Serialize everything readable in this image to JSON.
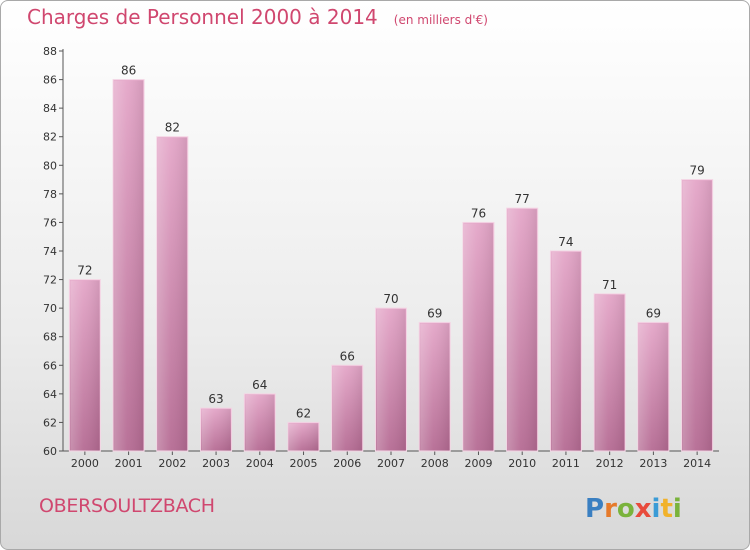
{
  "chart_data": {
    "type": "bar",
    "title": "Charges de Personnel 2000 à 2014",
    "subtitle": "(en milliers d'€)",
    "categories": [
      "2000",
      "2001",
      "2002",
      "2003",
      "2004",
      "2005",
      "2006",
      "2007",
      "2008",
      "2009",
      "2010",
      "2011",
      "2012",
      "2013",
      "2014"
    ],
    "values": [
      72,
      86,
      82,
      63,
      64,
      62,
      66,
      70,
      69,
      76,
      77,
      74,
      71,
      69,
      79
    ],
    "ylim": [
      60,
      88
    ],
    "yticks": [
      60,
      62,
      64,
      66,
      68,
      70,
      72,
      74,
      76,
      78,
      80,
      82,
      84,
      86,
      88
    ],
    "grid": false,
    "bar_color": "#d88db3",
    "text_color": "#d0476f"
  },
  "commune": "OBERSOULTZBACH",
  "logo": "Proxiti"
}
